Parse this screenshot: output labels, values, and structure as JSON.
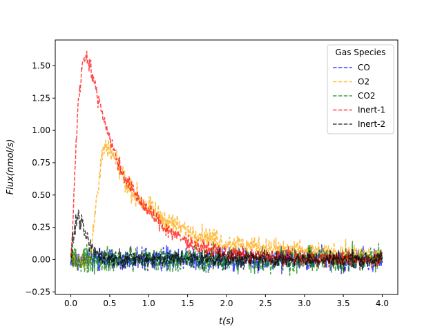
{
  "chart_data": {
    "type": "line",
    "title": "",
    "xlabel": "t(s)",
    "ylabel": "Flux(nmol/s)",
    "xlim": [
      -0.2,
      4.2
    ],
    "ylim": [
      -0.27,
      1.7
    ],
    "xticks": [
      0.0,
      0.5,
      1.0,
      1.5,
      2.0,
      2.5,
      3.0,
      3.5,
      4.0
    ],
    "xtick_labels": [
      "0.0",
      "0.5",
      "1.0",
      "1.5",
      "2.0",
      "2.5",
      "3.0",
      "3.5",
      "4.0"
    ],
    "yticks": [
      -0.25,
      0.0,
      0.25,
      0.5,
      0.75,
      1.0,
      1.25,
      1.5
    ],
    "ytick_labels": [
      "−0.25",
      "0.00",
      "0.25",
      "0.50",
      "0.75",
      "1.00",
      "1.25",
      "1.50"
    ],
    "grid": false,
    "legend": {
      "title": "Gas Species",
      "location": "upper-right"
    },
    "series": [
      {
        "name": "CO",
        "color": "#0000ff",
        "style": "dashed",
        "noise": 0.045,
        "points": [
          [
            0.0,
            0.0
          ],
          [
            4.0,
            0.0
          ]
        ]
      },
      {
        "name": "O2",
        "color": "#ffa500",
        "style": "dashed",
        "noise": 0.04,
        "points": [
          [
            0.0,
            0.0
          ],
          [
            0.25,
            0.0
          ],
          [
            0.3,
            0.3
          ],
          [
            0.35,
            0.58
          ],
          [
            0.4,
            0.8
          ],
          [
            0.45,
            0.86
          ],
          [
            0.5,
            0.84
          ],
          [
            0.6,
            0.72
          ],
          [
            0.7,
            0.6
          ],
          [
            0.8,
            0.52
          ],
          [
            1.0,
            0.4
          ],
          [
            1.2,
            0.31
          ],
          [
            1.5,
            0.22
          ],
          [
            2.0,
            0.13
          ],
          [
            2.5,
            0.09
          ],
          [
            3.0,
            0.06
          ],
          [
            3.5,
            0.04
          ],
          [
            4.0,
            0.03
          ]
        ]
      },
      {
        "name": "CO2",
        "color": "#008000",
        "style": "dashed",
        "noise": 0.05,
        "points": [
          [
            0.0,
            0.0
          ],
          [
            4.0,
            0.0
          ]
        ]
      },
      {
        "name": "Inert-1",
        "color": "#ff0000",
        "style": "dashed",
        "noise": 0.03,
        "points": [
          [
            0.0,
            0.0
          ],
          [
            0.03,
            0.35
          ],
          [
            0.06,
            0.8
          ],
          [
            0.1,
            1.25
          ],
          [
            0.15,
            1.52
          ],
          [
            0.2,
            1.59
          ],
          [
            0.25,
            1.5
          ],
          [
            0.3,
            1.36
          ],
          [
            0.4,
            1.15
          ],
          [
            0.5,
            0.94
          ],
          [
            0.6,
            0.76
          ],
          [
            0.7,
            0.63
          ],
          [
            0.8,
            0.53
          ],
          [
            1.0,
            0.37
          ],
          [
            1.2,
            0.25
          ],
          [
            1.4,
            0.17
          ],
          [
            1.6,
            0.11
          ],
          [
            1.8,
            0.07
          ],
          [
            2.0,
            0.04
          ],
          [
            2.5,
            0.02
          ],
          [
            3.0,
            0.01
          ],
          [
            4.0,
            0.0
          ]
        ]
      },
      {
        "name": "Inert-2",
        "color": "#000000",
        "style": "dashed",
        "noise": 0.035,
        "points": [
          [
            0.0,
            0.0
          ],
          [
            0.03,
            0.15
          ],
          [
            0.06,
            0.28
          ],
          [
            0.09,
            0.34
          ],
          [
            0.12,
            0.3
          ],
          [
            0.18,
            0.2
          ],
          [
            0.25,
            0.1
          ],
          [
            0.35,
            0.04
          ],
          [
            0.5,
            0.01
          ],
          [
            4.0,
            0.0
          ]
        ]
      }
    ]
  }
}
